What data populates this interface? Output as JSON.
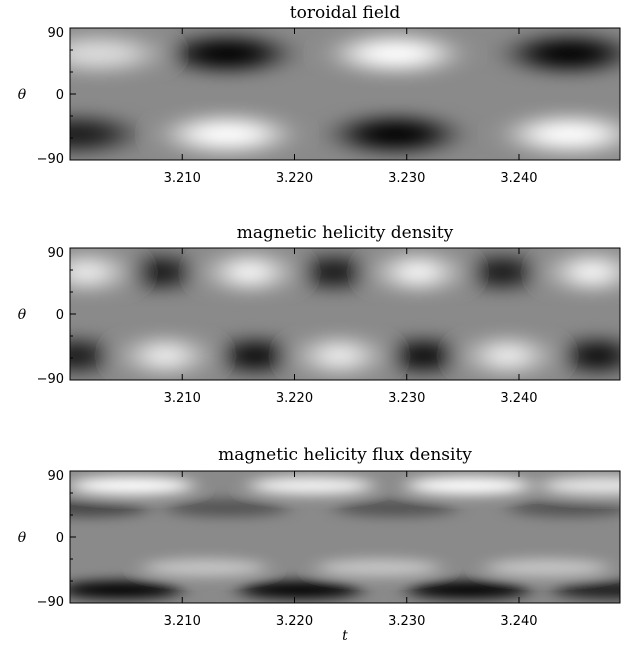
{
  "chart_data": [
    {
      "type": "heatmap",
      "title": "toroidal field",
      "xlabel": "",
      "ylabel": "θ",
      "xlim": [
        3.2,
        3.249
      ],
      "ylim": [
        -90,
        90
      ],
      "xticks": [
        "3.210",
        "3.220",
        "3.230",
        "3.240"
      ],
      "yticks": [
        "90",
        "0",
        "−90"
      ],
      "colormap": "grayscale",
      "features": [
        {
          "t": 3.2025,
          "theta": 55,
          "sign": 1,
          "amp": 0.7
        },
        {
          "t": 3.214,
          "theta": 55,
          "sign": -1,
          "amp": 1.0
        },
        {
          "t": 3.229,
          "theta": 55,
          "sign": 1,
          "amp": 1.0
        },
        {
          "t": 3.2445,
          "theta": 55,
          "sign": -1,
          "amp": 1.0
        },
        {
          "t": 3.2005,
          "theta": -55,
          "sign": -1,
          "amp": 0.8
        },
        {
          "t": 3.214,
          "theta": -55,
          "sign": 1,
          "amp": 1.0
        },
        {
          "t": 3.229,
          "theta": -55,
          "sign": -1,
          "amp": 1.0
        },
        {
          "t": 3.2445,
          "theta": -55,
          "sign": 1,
          "amp": 1.0
        }
      ]
    },
    {
      "type": "heatmap",
      "title": "magnetic helicity density",
      "xlabel": "",
      "ylabel": "θ",
      "xlim": [
        3.2,
        3.249
      ],
      "ylim": [
        -90,
        90
      ],
      "xticks": [
        "3.210",
        "3.220",
        "3.230",
        "3.240"
      ],
      "yticks": [
        "90",
        "0",
        "−90"
      ],
      "colormap": "grayscale",
      "features": [
        {
          "t": 3.2015,
          "theta": 57,
          "sign": 1,
          "amp": 0.9
        },
        {
          "t": 3.208,
          "theta": 57,
          "sign": -1,
          "amp": 0.9
        },
        {
          "t": 3.216,
          "theta": 57,
          "sign": 1,
          "amp": 1.0
        },
        {
          "t": 3.2235,
          "theta": 57,
          "sign": -1,
          "amp": 0.9
        },
        {
          "t": 3.231,
          "theta": 57,
          "sign": 1,
          "amp": 1.0
        },
        {
          "t": 3.2385,
          "theta": 57,
          "sign": -1,
          "amp": 0.9
        },
        {
          "t": 3.2465,
          "theta": 57,
          "sign": 1,
          "amp": 1.0
        },
        {
          "t": 3.2005,
          "theta": -57,
          "sign": -1,
          "amp": 0.9
        },
        {
          "t": 3.2085,
          "theta": -57,
          "sign": 1,
          "amp": 0.9
        },
        {
          "t": 3.2165,
          "theta": -57,
          "sign": -1,
          "amp": 1.0
        },
        {
          "t": 3.224,
          "theta": -57,
          "sign": 1,
          "amp": 0.9
        },
        {
          "t": 3.2315,
          "theta": -57,
          "sign": -1,
          "amp": 1.0
        },
        {
          "t": 3.239,
          "theta": -57,
          "sign": 1,
          "amp": 0.9
        },
        {
          "t": 3.247,
          "theta": -57,
          "sign": -1,
          "amp": 1.0
        }
      ]
    },
    {
      "type": "heatmap",
      "title": "magnetic helicity flux density",
      "xlabel": "t",
      "ylabel": "θ",
      "xlim": [
        3.2,
        3.249
      ],
      "ylim": [
        -90,
        90
      ],
      "xticks": [
        "3.210",
        "3.220",
        "3.230",
        "3.240"
      ],
      "yticks": [
        "90",
        "0",
        "−90"
      ],
      "colormap": "grayscale",
      "features": [
        {
          "t": 3.2055,
          "theta": 70,
          "sign": 1,
          "amp": 1.0
        },
        {
          "t": 3.2215,
          "theta": 70,
          "sign": 1,
          "amp": 0.9
        },
        {
          "t": 3.2355,
          "theta": 70,
          "sign": 1,
          "amp": 1.0
        },
        {
          "t": 3.2475,
          "theta": 70,
          "sign": 1,
          "amp": 0.8
        },
        {
          "t": 3.2015,
          "theta": 40,
          "sign": -1,
          "amp": 0.5
        },
        {
          "t": 3.214,
          "theta": 40,
          "sign": -1,
          "amp": 0.4
        },
        {
          "t": 3.229,
          "theta": 40,
          "sign": -1,
          "amp": 0.4
        },
        {
          "t": 3.2445,
          "theta": 40,
          "sign": -1,
          "amp": 0.4
        },
        {
          "t": 3.2045,
          "theta": -72,
          "sign": -1,
          "amp": 1.0
        },
        {
          "t": 3.2205,
          "theta": -72,
          "sign": -1,
          "amp": 1.0
        },
        {
          "t": 3.2355,
          "theta": -72,
          "sign": -1,
          "amp": 1.0
        },
        {
          "t": 3.2485,
          "theta": -72,
          "sign": -1,
          "amp": 0.8
        },
        {
          "t": 3.212,
          "theta": -42,
          "sign": 1,
          "amp": 0.5
        },
        {
          "t": 3.2275,
          "theta": -42,
          "sign": 1,
          "amp": 0.5
        },
        {
          "t": 3.2425,
          "theta": -42,
          "sign": 1,
          "amp": 0.5
        }
      ]
    }
  ]
}
